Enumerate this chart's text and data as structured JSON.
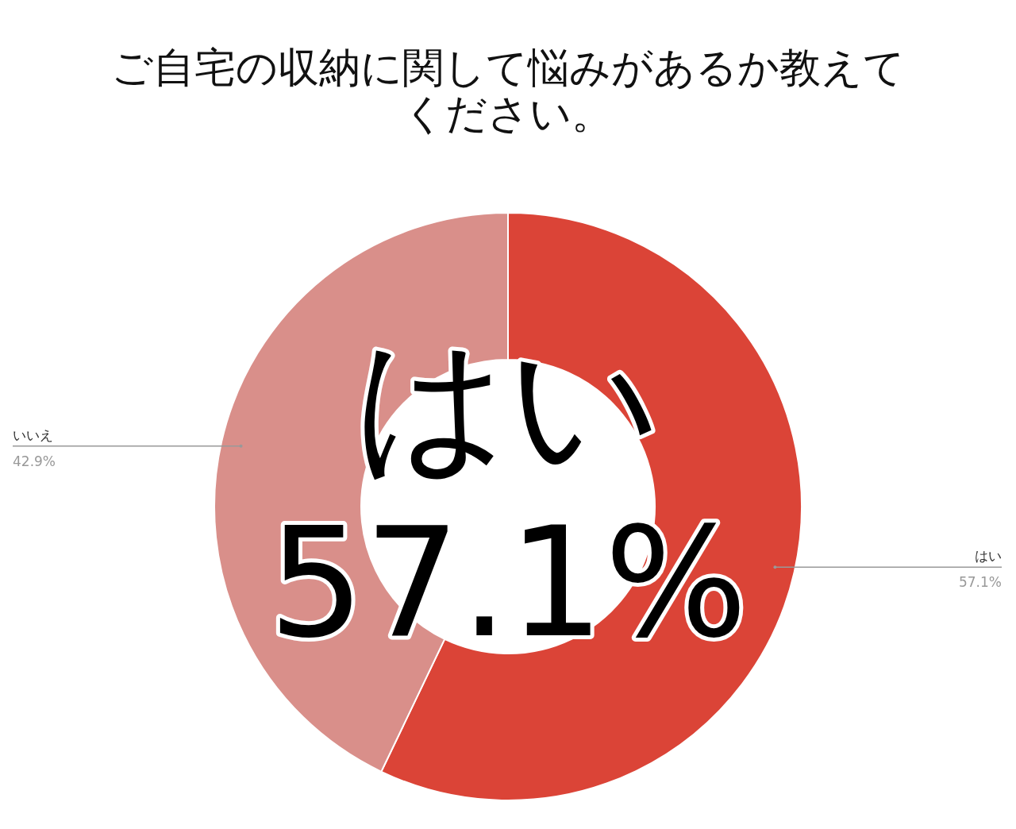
{
  "chart_data": {
    "type": "donut",
    "title": "ご自宅の収納に関して悩みがあるか教えてください。",
    "categories": [
      "はい",
      "いいえ"
    ],
    "values": [
      57.1,
      42.9
    ],
    "colors": [
      "#db4437",
      "#d98f8a"
    ],
    "value_labels": [
      "57.1%",
      "42.9%"
    ],
    "annotations": [
      "はい",
      "57.1%"
    ]
  }
}
